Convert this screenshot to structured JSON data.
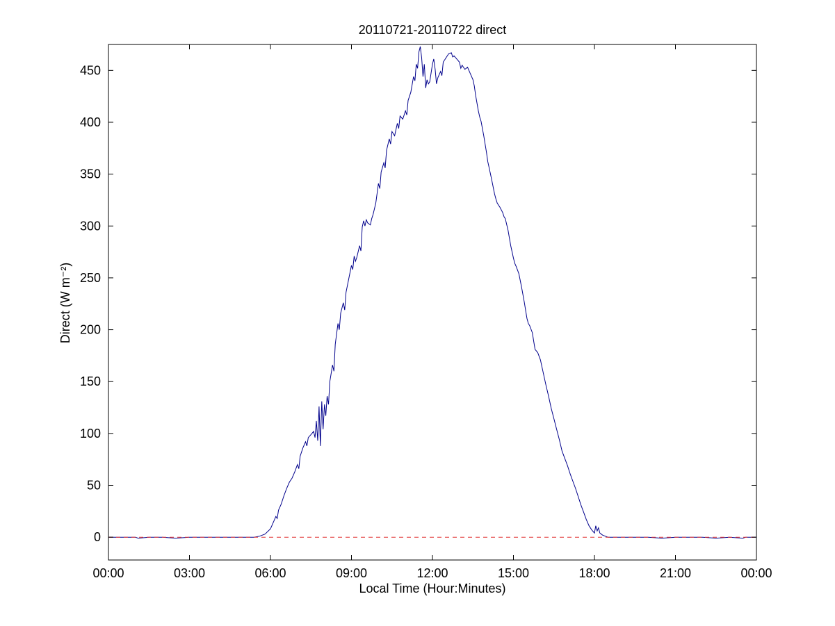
{
  "figure": {
    "title": "20110721-20110722 direct",
    "xlabel": "Local Time (Hour:Minutes)",
    "ylabel": "Direct (W m⁻²)"
  },
  "colors": {
    "data_line": "#00008b",
    "zero_line": "#e03030",
    "axes": "#000000",
    "background": "#ffffff"
  },
  "chart_data": {
    "type": "line",
    "title": "20110721-20110722 direct",
    "xlabel": "Local Time (Hour:Minutes)",
    "ylabel": "Direct (W m^-2)",
    "xlim": [
      0,
      24
    ],
    "ylim": [
      -22,
      475
    ],
    "x_ticks": [
      0,
      3,
      6,
      9,
      12,
      15,
      18,
      21,
      24
    ],
    "x_tick_labels": [
      "00:00",
      "03:00",
      "06:00",
      "09:00",
      "12:00",
      "15:00",
      "18:00",
      "21:00",
      "00:00"
    ],
    "y_ticks": [
      0,
      50,
      100,
      150,
      200,
      250,
      300,
      350,
      400,
      450
    ],
    "grid": false,
    "legend": null,
    "series": [
      {
        "name": "direct",
        "color": "#00008b",
        "style": "solid",
        "points": [
          [
            0,
            0
          ],
          [
            0.5,
            0
          ],
          [
            1,
            0
          ],
          [
            1.1,
            -1
          ],
          [
            1.5,
            0
          ],
          [
            2,
            0
          ],
          [
            2.5,
            -1
          ],
          [
            3,
            0
          ],
          [
            3.5,
            0
          ],
          [
            4,
            0
          ],
          [
            4.5,
            0
          ],
          [
            5,
            0
          ],
          [
            5.4,
            0
          ],
          [
            5.6,
            1
          ],
          [
            5.8,
            3
          ],
          [
            6.0,
            8
          ],
          [
            6.1,
            14
          ],
          [
            6.2,
            20
          ],
          [
            6.25,
            18
          ],
          [
            6.3,
            26
          ],
          [
            6.4,
            32
          ],
          [
            6.5,
            40
          ],
          [
            6.6,
            47
          ],
          [
            6.7,
            53
          ],
          [
            6.8,
            57
          ],
          [
            6.9,
            63
          ],
          [
            7.0,
            70
          ],
          [
            7.05,
            66
          ],
          [
            7.1,
            78
          ],
          [
            7.2,
            86
          ],
          [
            7.3,
            92
          ],
          [
            7.35,
            88
          ],
          [
            7.4,
            96
          ],
          [
            7.5,
            99
          ],
          [
            7.6,
            102
          ],
          [
            7.65,
            96
          ],
          [
            7.7,
            112
          ],
          [
            7.75,
            93
          ],
          [
            7.8,
            126
          ],
          [
            7.85,
            88
          ],
          [
            7.9,
            131
          ],
          [
            7.95,
            104
          ],
          [
            8.0,
            128
          ],
          [
            8.05,
            117
          ],
          [
            8.1,
            136
          ],
          [
            8.15,
            128
          ],
          [
            8.2,
            150
          ],
          [
            8.3,
            166
          ],
          [
            8.35,
            160
          ],
          [
            8.4,
            186
          ],
          [
            8.5,
            206
          ],
          [
            8.55,
            200
          ],
          [
            8.6,
            216
          ],
          [
            8.7,
            226
          ],
          [
            8.75,
            219
          ],
          [
            8.8,
            236
          ],
          [
            8.9,
            249
          ],
          [
            9.0,
            262
          ],
          [
            9.05,
            258
          ],
          [
            9.1,
            271
          ],
          [
            9.15,
            266
          ],
          [
            9.2,
            270
          ],
          [
            9.3,
            281
          ],
          [
            9.35,
            276
          ],
          [
            9.4,
            299
          ],
          [
            9.45,
            305
          ],
          [
            9.5,
            300
          ],
          [
            9.55,
            306
          ],
          [
            9.6,
            303
          ],
          [
            9.7,
            301
          ],
          [
            9.75,
            307
          ],
          [
            9.8,
            311
          ],
          [
            9.9,
            322
          ],
          [
            10.0,
            341
          ],
          [
            10.05,
            336
          ],
          [
            10.1,
            352
          ],
          [
            10.2,
            361
          ],
          [
            10.25,
            356
          ],
          [
            10.3,
            373
          ],
          [
            10.4,
            384
          ],
          [
            10.45,
            379
          ],
          [
            10.5,
            391
          ],
          [
            10.6,
            387
          ],
          [
            10.7,
            399
          ],
          [
            10.75,
            394
          ],
          [
            10.8,
            406
          ],
          [
            10.9,
            403
          ],
          [
            11.0,
            411
          ],
          [
            11.05,
            407
          ],
          [
            11.1,
            421
          ],
          [
            11.2,
            429
          ],
          [
            11.3,
            444
          ],
          [
            11.35,
            440
          ],
          [
            11.4,
            456
          ],
          [
            11.45,
            452
          ],
          [
            11.5,
            468
          ],
          [
            11.55,
            473
          ],
          [
            11.6,
            462
          ],
          [
            11.65,
            444
          ],
          [
            11.7,
            456
          ],
          [
            11.75,
            433
          ],
          [
            11.8,
            441
          ],
          [
            11.85,
            437
          ],
          [
            11.9,
            439
          ],
          [
            12.0,
            456
          ],
          [
            12.05,
            461
          ],
          [
            12.1,
            451
          ],
          [
            12.15,
            437
          ],
          [
            12.2,
            443
          ],
          [
            12.3,
            449
          ],
          [
            12.35,
            445
          ],
          [
            12.4,
            458
          ],
          [
            12.5,
            462
          ],
          [
            12.6,
            466
          ],
          [
            12.7,
            467
          ],
          [
            12.75,
            463
          ],
          [
            12.8,
            464
          ],
          [
            12.9,
            461
          ],
          [
            13.0,
            458
          ],
          [
            13.05,
            452
          ],
          [
            13.1,
            455
          ],
          [
            13.2,
            451
          ],
          [
            13.3,
            453
          ],
          [
            13.4,
            447
          ],
          [
            13.5,
            441
          ],
          [
            13.55,
            435
          ],
          [
            13.6,
            426
          ],
          [
            13.7,
            411
          ],
          [
            13.75,
            405
          ],
          [
            13.8,
            401
          ],
          [
            13.9,
            387
          ],
          [
            14.0,
            371
          ],
          [
            14.05,
            362
          ],
          [
            14.1,
            356
          ],
          [
            14.2,
            344
          ],
          [
            14.3,
            331
          ],
          [
            14.35,
            326
          ],
          [
            14.4,
            322
          ],
          [
            14.5,
            318
          ],
          [
            14.6,
            313
          ],
          [
            14.65,
            309
          ],
          [
            14.7,
            307
          ],
          [
            14.8,
            296
          ],
          [
            14.9,
            281
          ],
          [
            15.0,
            269
          ],
          [
            15.05,
            264
          ],
          [
            15.1,
            261
          ],
          [
            15.2,
            254
          ],
          [
            15.3,
            241
          ],
          [
            15.4,
            227
          ],
          [
            15.5,
            211
          ],
          [
            15.55,
            206
          ],
          [
            15.6,
            204
          ],
          [
            15.7,
            197
          ],
          [
            15.75,
            189
          ],
          [
            15.8,
            181
          ],
          [
            15.9,
            178
          ],
          [
            16.0,
            171
          ],
          [
            16.1,
            159
          ],
          [
            16.2,
            147
          ],
          [
            16.3,
            136
          ],
          [
            16.4,
            124
          ],
          [
            16.5,
            114
          ],
          [
            16.6,
            104
          ],
          [
            16.7,
            94
          ],
          [
            16.8,
            83
          ],
          [
            16.9,
            76
          ],
          [
            17.0,
            69
          ],
          [
            17.1,
            61
          ],
          [
            17.2,
            54
          ],
          [
            17.3,
            47
          ],
          [
            17.4,
            39
          ],
          [
            17.5,
            31
          ],
          [
            17.6,
            24
          ],
          [
            17.7,
            17
          ],
          [
            17.8,
            11
          ],
          [
            17.9,
            7
          ],
          [
            18.0,
            4
          ],
          [
            18.05,
            11
          ],
          [
            18.1,
            6
          ],
          [
            18.15,
            9
          ],
          [
            18.2,
            4
          ],
          [
            18.3,
            2
          ],
          [
            18.4,
            1
          ],
          [
            18.5,
            0
          ],
          [
            19,
            0
          ],
          [
            19.5,
            0
          ],
          [
            20,
            0
          ],
          [
            20.5,
            -1
          ],
          [
            21,
            0
          ],
          [
            21.5,
            0
          ],
          [
            22,
            0
          ],
          [
            22.5,
            -1
          ],
          [
            23,
            0
          ],
          [
            23.5,
            -1
          ],
          [
            23.6,
            0
          ],
          [
            24,
            0
          ]
        ]
      },
      {
        "name": "zero-reference",
        "color": "#e03030",
        "style": "dashed",
        "points": [
          [
            0,
            0
          ],
          [
            24,
            0
          ]
        ]
      }
    ]
  }
}
